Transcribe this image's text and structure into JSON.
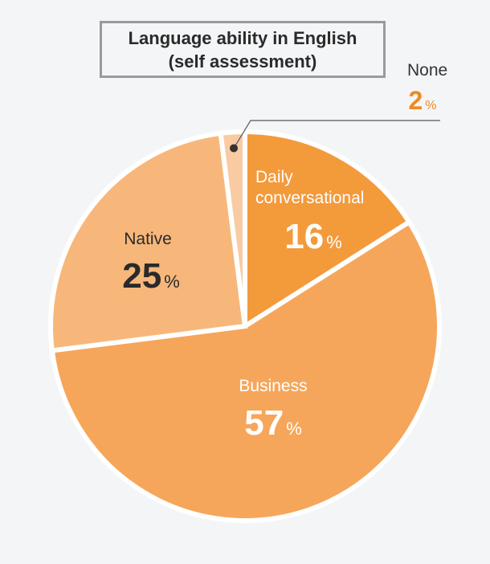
{
  "chart_data": {
    "type": "pie",
    "title_line1": "Language ability in English",
    "title_line2": "(self assessment)",
    "percent_sign": "%",
    "slices": [
      {
        "name_lines": [
          "Daily",
          "conversational"
        ],
        "value": 16,
        "color": "#f39a3b",
        "label_color": "#ffffff",
        "value_color": "#ffffff"
      },
      {
        "name_lines": [
          "Business"
        ],
        "value": 57,
        "color": "#f6a65b",
        "label_color": "#ffffff",
        "value_color": "#ffffff"
      },
      {
        "name_lines": [
          "Native"
        ],
        "value": 25,
        "color": "#f7b77a",
        "label_color": "#2a2a2a",
        "value_color": "#2a2a2a"
      },
      {
        "name_lines": [
          "None"
        ],
        "value": 2,
        "color": "#f9cba2",
        "label_color": "#333333",
        "value_color": "#ef8a1f"
      }
    ]
  }
}
